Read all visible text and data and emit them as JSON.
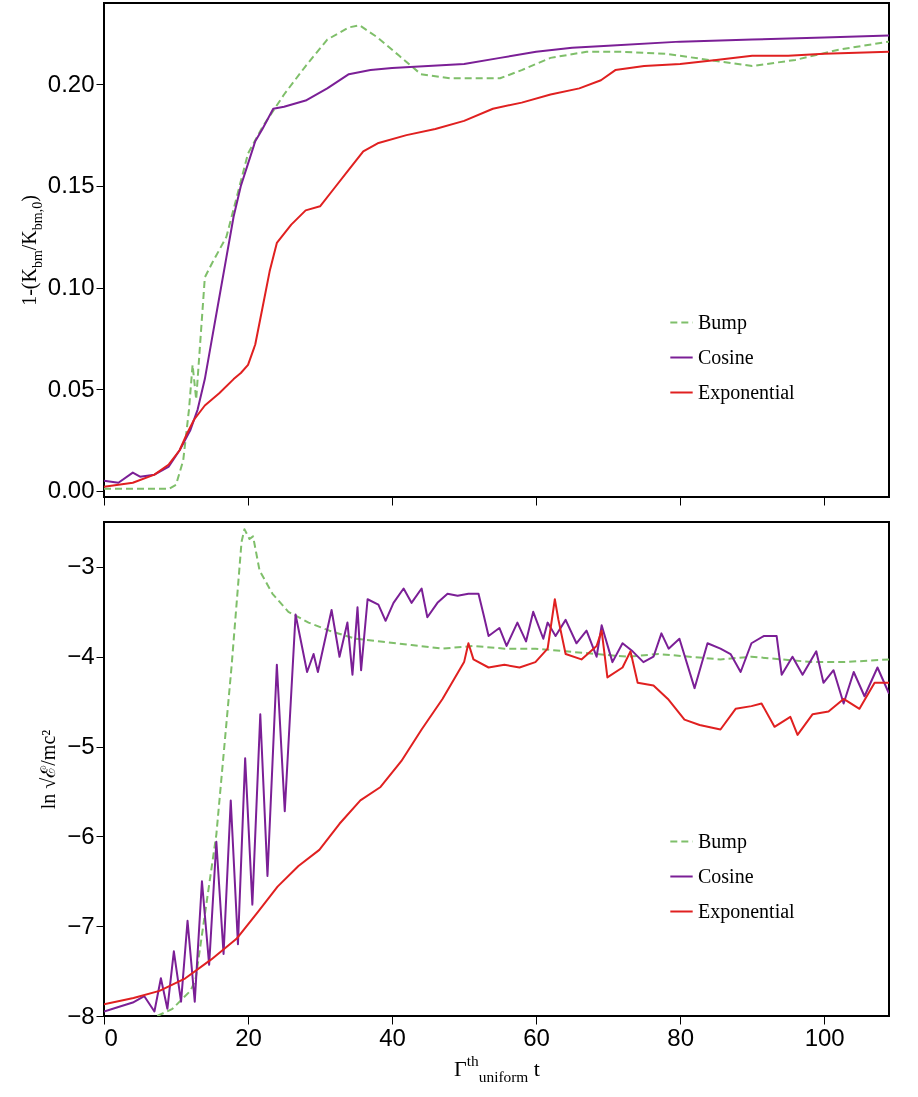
{
  "chart_data": [
    {
      "type": "line",
      "ylabel": "1-(K$_{bm}$/K$_{bm,0}$)",
      "xlim": [
        0,
        109
      ],
      "ylim": [
        -0.003,
        0.24
      ],
      "xticks": [
        0,
        20,
        40,
        60,
        80,
        100
      ],
      "yticks": [
        {
          "value": 0,
          "label": "0.00"
        },
        {
          "value": 0.05,
          "label": "0.05"
        },
        {
          "value": 0.1,
          "label": "0.10"
        },
        {
          "value": 0.15,
          "label": "0.15"
        },
        {
          "value": 0.2,
          "label": "0.20"
        }
      ],
      "tick_labels": "y",
      "legend": "bottom right",
      "series": [
        {
          "name": "Bump",
          "color": "#7fbf6a",
          "line_style": "dashed",
          "x": [
            0,
            5,
            9,
            10,
            11,
            11.8,
            12.3,
            12.8,
            13.5,
            14,
            15,
            17,
            20,
            22,
            25,
            28,
            31,
            34,
            35.5,
            38,
            41,
            44,
            48,
            55,
            58,
            62,
            67,
            72,
            78,
            84,
            90,
            96,
            102,
            109
          ],
          "values": [
            0.001,
            0.001,
            0.001,
            0.003,
            0.015,
            0.04,
            0.062,
            0.045,
            0.08,
            0.105,
            0.112,
            0.125,
            0.166,
            0.179,
            0.195,
            0.209,
            0.222,
            0.228,
            0.229,
            0.223,
            0.214,
            0.205,
            0.203,
            0.203,
            0.207,
            0.213,
            0.216,
            0.216,
            0.215,
            0.212,
            0.209,
            0.212,
            0.217,
            0.221
          ]
        },
        {
          "name": "Cosine",
          "color": "#7b1f96",
          "line_style": "solid",
          "x": [
            0,
            2,
            4,
            5,
            7,
            9,
            10.5,
            12,
            13,
            14,
            15,
            16,
            17,
            18,
            19,
            20,
            21,
            22,
            23.5,
            25,
            28,
            31,
            34,
            37,
            40,
            45,
            50,
            55,
            60,
            65,
            70,
            80,
            90,
            100,
            109
          ],
          "values": [
            0.005,
            0.004,
            0.009,
            0.007,
            0.008,
            0.012,
            0.02,
            0.03,
            0.04,
            0.055,
            0.075,
            0.095,
            0.115,
            0.135,
            0.15,
            0.161,
            0.172,
            0.178,
            0.188,
            0.189,
            0.192,
            0.198,
            0.205,
            0.207,
            0.208,
            0.209,
            0.21,
            0.213,
            0.216,
            0.218,
            0.219,
            0.221,
            0.222,
            0.223,
            0.224
          ]
        },
        {
          "name": "Exponential",
          "color": "#e02020",
          "line_style": "solid",
          "x": [
            0,
            4,
            7,
            9,
            10.5,
            11.5,
            12.5,
            14,
            16,
            18,
            19,
            20,
            21,
            22,
            23,
            24,
            26,
            28,
            30,
            32,
            34,
            36,
            38,
            42,
            46,
            50,
            54,
            58,
            62,
            66,
            69,
            71,
            75,
            80,
            85,
            90,
            95,
            100,
            109
          ],
          "values": [
            0.002,
            0.004,
            0.008,
            0.013,
            0.02,
            0.028,
            0.035,
            0.042,
            0.048,
            0.055,
            0.058,
            0.062,
            0.072,
            0.09,
            0.108,
            0.122,
            0.131,
            0.138,
            0.14,
            0.149,
            0.158,
            0.167,
            0.171,
            0.175,
            0.178,
            0.182,
            0.188,
            0.191,
            0.195,
            0.198,
            0.202,
            0.207,
            0.209,
            0.21,
            0.212,
            0.214,
            0.214,
            0.215,
            0.216
          ]
        }
      ]
    },
    {
      "type": "line",
      "xlabel": "Γ$^{th}$$_{uniform}$ t",
      "ylabel": "ln √ℰ/mc²",
      "xlim": [
        0,
        109
      ],
      "ylim": [
        -8,
        -2.5
      ],
      "xticks": [
        0,
        20,
        40,
        60,
        80,
        100
      ],
      "yticks": [
        -8,
        -7,
        -6,
        -5,
        -4,
        -3
      ],
      "legend": "bottom right",
      "series": [
        {
          "name": "Bump",
          "color": "#7fbf6a",
          "line_style": "dashed",
          "x": [
            7.4,
            9.5,
            12,
            12.7,
            15.6,
            17.7,
            19.1,
            19.5,
            20.2,
            20.7,
            21.6,
            23.4,
            25.6,
            28.4,
            31.3,
            34.9,
            38.4,
            42.7,
            47,
            51.3,
            55.6,
            59.9,
            64.1,
            68.4,
            72.7,
            77,
            81.3,
            85.6,
            89.9,
            94.1,
            98.4,
            102.7,
            109
          ],
          "values": [
            -8,
            -7.92,
            -7.72,
            -7.6,
            -5.98,
            -4.12,
            -2.72,
            -2.58,
            -2.69,
            -2.66,
            -3.04,
            -3.3,
            -3.5,
            -3.62,
            -3.71,
            -3.8,
            -3.83,
            -3.87,
            -3.91,
            -3.88,
            -3.91,
            -3.91,
            -3.94,
            -3.97,
            -4,
            -3.97,
            -4,
            -4.03,
            -4,
            -4.03,
            -4.06,
            -4.06,
            -4.03
          ]
        },
        {
          "name": "Cosine",
          "color": "#7b1f96",
          "line_style": "solid",
          "x": [
            0,
            2,
            4,
            5.6,
            7,
            7.9,
            8.8,
            9.7,
            10.7,
            11.6,
            12.6,
            13.6,
            14.6,
            15.6,
            16.6,
            17.6,
            18.6,
            19.6,
            20.6,
            21.7,
            22.7,
            24,
            25.1,
            26.6,
            28.2,
            29.1,
            29.7,
            31.6,
            32.7,
            33.8,
            34.5,
            35.2,
            35.7,
            36.6,
            38.1,
            39.1,
            40.2,
            41.6,
            42.7,
            44.1,
            44.9,
            46.3,
            47.7,
            49.1,
            50.6,
            52,
            52.7,
            53.4,
            54.9,
            55.9,
            57.4,
            58.6,
            59.6,
            61,
            61.6,
            62.7,
            64.1,
            65.6,
            67,
            68.4,
            69.1,
            70.6,
            72,
            73.4,
            74.9,
            76.3,
            77.4,
            78.4,
            79.9,
            82,
            83.8,
            85.6,
            87,
            88.4,
            89.9,
            91.6,
            93.4,
            94.1,
            95.6,
            97,
            98.9,
            99.9,
            101.3,
            102.7,
            104.1,
            105.6,
            107.4,
            109
          ],
          "values": [
            -7.95,
            -7.9,
            -7.85,
            -7.78,
            -7.95,
            -7.58,
            -7.92,
            -7.28,
            -7.84,
            -6.94,
            -7.84,
            -6.5,
            -7.43,
            -6.06,
            -7.31,
            -5.6,
            -7.2,
            -5.13,
            -6.76,
            -4.64,
            -6.44,
            -4.09,
            -5.72,
            -3.53,
            -4.17,
            -3.97,
            -4.17,
            -3.48,
            -4,
            -3.62,
            -4.2,
            -3.45,
            -4.15,
            -3.36,
            -3.42,
            -3.6,
            -3.4,
            -3.24,
            -3.4,
            -3.24,
            -3.56,
            -3.4,
            -3.3,
            -3.32,
            -3.3,
            -3.3,
            -3.53,
            -3.77,
            -3.68,
            -3.88,
            -3.62,
            -3.83,
            -3.5,
            -3.8,
            -3.62,
            -3.77,
            -3.59,
            -3.85,
            -3.71,
            -4,
            -3.65,
            -4.06,
            -3.85,
            -3.94,
            -4.06,
            -4,
            -3.74,
            -3.91,
            -3.8,
            -4.35,
            -3.85,
            -3.91,
            -3.97,
            -4.17,
            -3.85,
            -3.77,
            -3.77,
            -4.2,
            -4,
            -4.2,
            -3.94,
            -4.29,
            -4.15,
            -4.52,
            -4.17,
            -4.44,
            -4.12,
            -4.41
          ]
        },
        {
          "name": "Exponential",
          "color": "#e02020",
          "line_style": "solid",
          "x": [
            0,
            4.1,
            7.7,
            11.3,
            14.9,
            18.4,
            21.3,
            24.1,
            27,
            29.9,
            32.7,
            35.6,
            38.4,
            41.3,
            44.1,
            47,
            50,
            50.6,
            51.3,
            53.4,
            55.6,
            57.7,
            59.9,
            61.6,
            62.6,
            63.1,
            64.1,
            66.3,
            68.4,
            69.1,
            69.9,
            72,
            73.1,
            74.1,
            76.3,
            78.3,
            80.6,
            82.7,
            85.6,
            87.7,
            89.9,
            91.3,
            93.1,
            95.3,
            96.3,
            98.4,
            100.6,
            102.7,
            104.9,
            107,
            109
          ],
          "values": [
            -7.87,
            -7.8,
            -7.72,
            -7.58,
            -7.37,
            -7.14,
            -6.85,
            -6.56,
            -6.33,
            -6.15,
            -5.86,
            -5.6,
            -5.45,
            -5.16,
            -4.81,
            -4.47,
            -4.06,
            -3.85,
            -4.03,
            -4.12,
            -4.09,
            -4.12,
            -4.06,
            -3.91,
            -3.36,
            -3.59,
            -3.97,
            -4.03,
            -3.88,
            -3.71,
            -4.23,
            -4.12,
            -3.94,
            -4.29,
            -4.32,
            -4.47,
            -4.7,
            -4.76,
            -4.81,
            -4.58,
            -4.55,
            -4.52,
            -4.78,
            -4.67,
            -4.87,
            -4.64,
            -4.61,
            -4.47,
            -4.58,
            -4.29,
            -4.29
          ]
        }
      ]
    }
  ]
}
